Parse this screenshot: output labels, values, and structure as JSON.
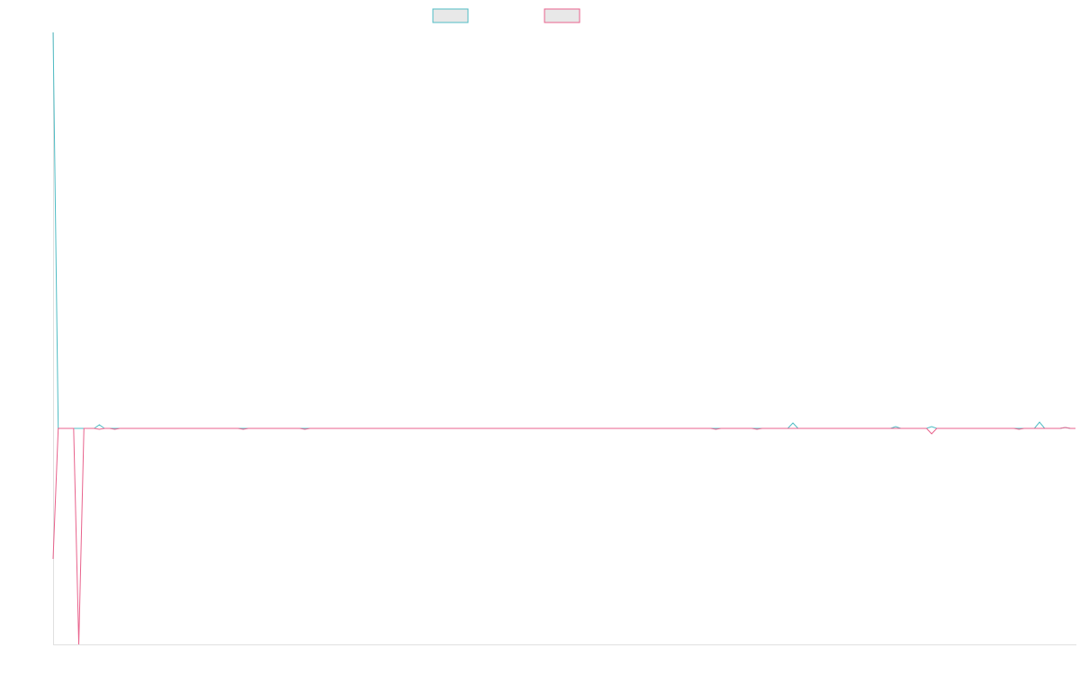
{
  "chart_data": {
    "type": "line",
    "ylim": [
      -240,
      440
    ],
    "series": [
      {
        "color": "#4fbcc4",
        "values": [
          440,
          0,
          0,
          0,
          0,
          0,
          0,
          0,
          0,
          4,
          0,
          0,
          0,
          0,
          0,
          0,
          0,
          0,
          0,
          0,
          0,
          0,
          0,
          0,
          0,
          0,
          0,
          0,
          0,
          0,
          0,
          0,
          0,
          0,
          0,
          0,
          0,
          0,
          0,
          0,
          0,
          0,
          0,
          0,
          0,
          0,
          0,
          0,
          0,
          0,
          0,
          0,
          0,
          0,
          0,
          0,
          0,
          0,
          0,
          0,
          0,
          0,
          0,
          0,
          0,
          0,
          0,
          0,
          0,
          0,
          0,
          0,
          0,
          0,
          0,
          0,
          0,
          0,
          0,
          0,
          0,
          0,
          0,
          0,
          0,
          0,
          0,
          0,
          0,
          0,
          0,
          0,
          0,
          0,
          0,
          0,
          0,
          0,
          0,
          0,
          0,
          0,
          0,
          0,
          0,
          0,
          0,
          0,
          0,
          0,
          0,
          0,
          0,
          0,
          0,
          0,
          0,
          0,
          0,
          0,
          0,
          0,
          0,
          0,
          0,
          0,
          0,
          0,
          0,
          0,
          0,
          0,
          0,
          0,
          0,
          0,
          0,
          0,
          0,
          0,
          0,
          0,
          0,
          0,
          6,
          0,
          0,
          0,
          0,
          0,
          0,
          0,
          0,
          0,
          0,
          0,
          0,
          0,
          0,
          0,
          0,
          0,
          0,
          0,
          2,
          0,
          0,
          0,
          0,
          0,
          0,
          2,
          0,
          0,
          0,
          0,
          0,
          0,
          0,
          0,
          0,
          0,
          0,
          0,
          0,
          0,
          0,
          0,
          0,
          0,
          0,
          0,
          7,
          0,
          0,
          0,
          0,
          1,
          0,
          0
        ]
      },
      {
        "color": "#e8628c",
        "values": [
          -145,
          0,
          0,
          0,
          0,
          -240,
          0,
          0,
          0,
          -1,
          0,
          0,
          -1,
          0,
          0,
          0,
          0,
          0,
          0,
          0,
          0,
          0,
          0,
          0,
          0,
          0,
          0,
          0,
          0,
          0,
          0,
          0,
          0,
          0,
          0,
          0,
          0,
          -1,
          0,
          0,
          0,
          0,
          0,
          0,
          0,
          0,
          0,
          0,
          0,
          -1,
          0,
          0,
          0,
          0,
          0,
          0,
          0,
          0,
          0,
          0,
          0,
          0,
          0,
          0,
          0,
          0,
          0,
          0,
          0,
          0,
          0,
          0,
          0,
          0,
          0,
          0,
          0,
          0,
          0,
          0,
          0,
          0,
          0,
          0,
          0,
          0,
          0,
          0,
          0,
          0,
          0,
          0,
          0,
          0,
          0,
          0,
          0,
          0,
          0,
          0,
          0,
          0,
          0,
          0,
          0,
          0,
          0,
          0,
          0,
          0,
          0,
          0,
          0,
          0,
          0,
          0,
          0,
          0,
          0,
          0,
          0,
          0,
          0,
          0,
          0,
          0,
          0,
          0,
          0,
          -1,
          0,
          0,
          0,
          0,
          0,
          0,
          0,
          -1,
          0,
          0,
          0,
          0,
          0,
          0,
          0,
          0,
          0,
          0,
          0,
          0,
          0,
          0,
          0,
          0,
          0,
          0,
          0,
          0,
          0,
          0,
          0,
          0,
          0,
          0,
          0,
          0,
          0,
          0,
          0,
          0,
          0,
          -6,
          0,
          0,
          0,
          0,
          0,
          0,
          0,
          0,
          0,
          0,
          0,
          0,
          0,
          0,
          0,
          0,
          -1,
          0,
          0,
          0,
          0,
          0,
          0,
          0,
          0,
          1,
          0,
          0
        ]
      }
    ]
  }
}
